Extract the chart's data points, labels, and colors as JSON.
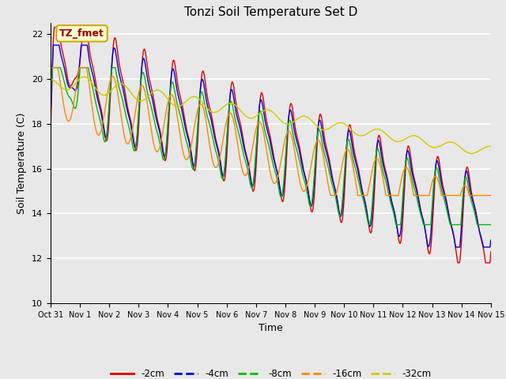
{
  "title": "Tonzi Soil Temperature Set D",
  "xlabel": "Time",
  "ylabel": "Soil Temperature (C)",
  "ylim": [
    10,
    22.5
  ],
  "xlim": [
    0,
    15
  ],
  "background_color": "#e8e8e8",
  "plot_bg_color": "#e8e8e8",
  "annotation_text": "TZ_fmet",
  "annotation_bg": "#ffffcc",
  "annotation_border": "#ccaa00",
  "annotation_text_color": "#990000",
  "colors": {
    "-2cm": "#dd0000",
    "-4cm": "#0000dd",
    "-8cm": "#00bb00",
    "-16cm": "#ff8800",
    "-32cm": "#cccc00"
  },
  "tick_labels": [
    "Oct 31",
    "Nov 1",
    "Nov 2",
    "Nov 3",
    "Nov 4",
    "Nov 5",
    "Nov 6",
    "Nov 7",
    "Nov 8",
    "Nov 9",
    "Nov 10",
    "Nov 11",
    "Nov 12",
    "Nov 13",
    "Nov 14",
    "Nov 15"
  ],
  "yticks": [
    10,
    12,
    14,
    16,
    18,
    20,
    22
  ],
  "figsize": [
    6.4,
    4.8
  ],
  "dpi": 100
}
